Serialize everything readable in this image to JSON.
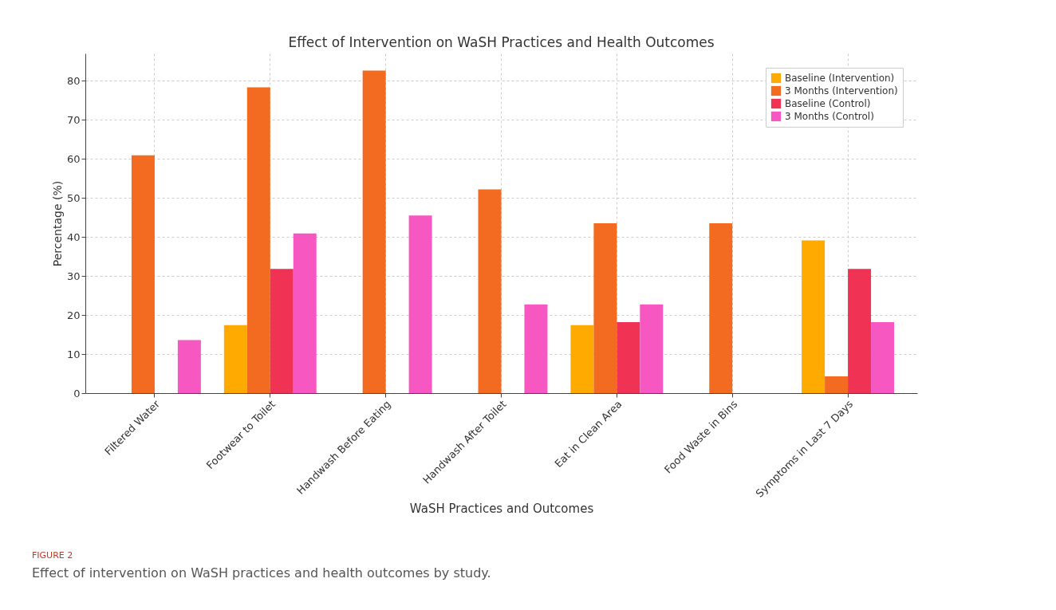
{
  "chart_data": {
    "type": "bar",
    "title": "Effect of Intervention on WaSH Practices and Health Outcomes",
    "xlabel": "WaSH Practices and Outcomes",
    "ylabel": "Percentage (%)",
    "categories": [
      "Filtered Water",
      "Footwear to Toilet",
      "Handwash Before Eating",
      "Handwash After Toilet",
      "Eat in Clean Area",
      "Food Waste in Bins",
      "Symptoms in Last 7 Days"
    ],
    "series": [
      {
        "name": "Baseline (Intervention)",
        "color": "#ffaa00",
        "values": [
          0,
          17.4,
          0,
          0,
          17.4,
          0,
          39.1
        ]
      },
      {
        "name": "3 Months (Intervention)",
        "color": "#f26b21",
        "values": [
          60.9,
          78.3,
          82.6,
          52.2,
          43.5,
          43.5,
          4.3
        ]
      },
      {
        "name": "Baseline (Control)",
        "color": "#f03355",
        "values": [
          0,
          31.8,
          0,
          0,
          18.2,
          0,
          31.8
        ]
      },
      {
        "name": "3 Months (Control)",
        "color": "#f757c0",
        "values": [
          13.6,
          40.9,
          45.5,
          22.7,
          22.7,
          0,
          18.2
        ]
      }
    ],
    "ylim": [
      0,
      87
    ],
    "yticks": [
      0,
      10,
      20,
      30,
      40,
      50,
      60,
      70,
      80
    ],
    "grid": true,
    "legend": "top right",
    "annotations": [
      "FIGURE 2",
      "Effect of intervention on WaSH practices and health outcomes by study."
    ]
  }
}
